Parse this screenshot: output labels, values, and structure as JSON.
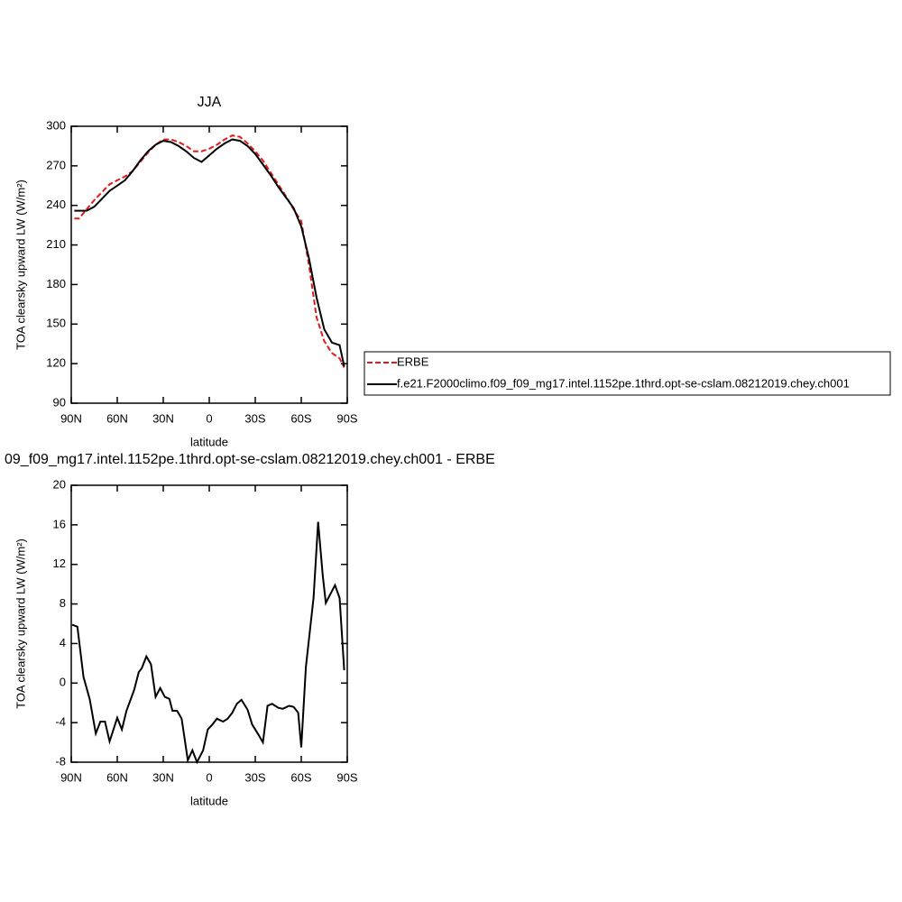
{
  "chart_data": [
    {
      "type": "line",
      "title": "JJA",
      "xlabel": "latitude",
      "ylabel": "TOA clearsky upward LW (W/m²)",
      "x": [
        88,
        85,
        80,
        75,
        70,
        65,
        60,
        55,
        50,
        45,
        40,
        35,
        30,
        25,
        20,
        15,
        10,
        5,
        0,
        -5,
        -10,
        -15,
        -20,
        -25,
        -30,
        -35,
        -40,
        -45,
        -50,
        -55,
        -60,
        -65,
        -70,
        -75,
        -80,
        -85,
        -88
      ],
      "series": [
        {
          "name": "ERBE",
          "color": "#e31a1c",
          "style": "dashed",
          "values": [
            230,
            230,
            237,
            244,
            250,
            256,
            259,
            262,
            266,
            273,
            280,
            286,
            290,
            290,
            288,
            285,
            281,
            281,
            283,
            286,
            290,
            293,
            292,
            287,
            281,
            274,
            265,
            256,
            247,
            237,
            228,
            195,
            155,
            137,
            128,
            124,
            117
          ]
        },
        {
          "name": "f.e21.F2000climo.f09_f09_mg17.intel.1152pe.1thrd.opt-se-cslam.08212019.chey.ch001",
          "color": "#000000",
          "style": "solid",
          "values": [
            236,
            236,
            236,
            239,
            245,
            251,
            255,
            259,
            266,
            274,
            281,
            286,
            289,
            288,
            285,
            281,
            276,
            273,
            278,
            283,
            287,
            290,
            289,
            285,
            279,
            271,
            263,
            254,
            246,
            238,
            224,
            200,
            170,
            146,
            136,
            134,
            118
          ]
        }
      ],
      "legend": "right",
      "xlim": [
        90,
        -90
      ],
      "xticks": [
        {
          "value": 90,
          "label": "90N"
        },
        {
          "value": 60,
          "label": "60N"
        },
        {
          "value": 30,
          "label": "30N"
        },
        0,
        {
          "value": -30,
          "label": "30S"
        },
        {
          "value": -60,
          "label": "60S"
        },
        {
          "value": -90,
          "label": "90S"
        }
      ],
      "ylim": [
        90,
        300
      ],
      "yticks": [
        90,
        120,
        150,
        180,
        210,
        240,
        270,
        300
      ]
    },
    {
      "type": "line",
      "title": "09_f09_mg17.intel.1152pe.1thrd.opt-se-cslam.08212019.chey.ch001 - ERBE",
      "xlabel": "latitude",
      "ylabel": "TOA clearsky upward LW (W/m²)",
      "x": [
        89.4,
        86,
        82,
        78,
        74,
        71,
        68,
        65,
        60,
        57,
        54,
        49,
        46,
        44,
        41,
        38,
        35,
        32,
        29,
        26,
        24,
        21,
        18,
        14,
        11,
        8,
        4,
        1,
        -2,
        -5,
        -9,
        -12,
        -15,
        -18,
        -21,
        -25,
        -28,
        -32,
        -35,
        -38,
        -41,
        -45,
        -48,
        -52,
        -55,
        -58,
        -60,
        -63,
        -66,
        -68,
        -71,
        -74,
        -76,
        -79,
        -82,
        -85,
        -88
      ],
      "series": [
        {
          "color": "#000000",
          "style": "solid",
          "values": [
            5.9,
            5.7,
            0.6,
            -1.6,
            -5.1,
            -3.9,
            -3.9,
            -5.9,
            -3.5,
            -4.7,
            -2.8,
            -0.7,
            1.1,
            1.5,
            2.7,
            1.9,
            -1.4,
            -0.5,
            -1.4,
            -1.6,
            -2.8,
            -2.8,
            -3.6,
            -7.8,
            -6.8,
            -8.0,
            -6.8,
            -4.7,
            -4.2,
            -3.6,
            -3.9,
            -3.6,
            -3.0,
            -2.1,
            -1.7,
            -2.7,
            -4.2,
            -5.2,
            -6.0,
            -2.3,
            -2.1,
            -2.5,
            -2.6,
            -2.3,
            -2.4,
            -3.0,
            -6.5,
            1.6,
            5.8,
            8.6,
            16.3,
            10.9,
            8.1,
            9.0,
            9.9,
            8.6,
            1.3
          ]
        }
      ],
      "xlim": [
        90,
        -90
      ],
      "xticks": [
        {
          "value": 90,
          "label": "90N"
        },
        {
          "value": 60,
          "label": "60N"
        },
        {
          "value": 30,
          "label": "30N"
        },
        0,
        {
          "value": -30,
          "label": "30S"
        },
        {
          "value": -60,
          "label": "60S"
        },
        {
          "value": -90,
          "label": "90S"
        }
      ],
      "ylim": [
        -8,
        20
      ],
      "yticks": [
        -8,
        -4,
        0,
        4,
        8,
        12,
        16,
        20
      ]
    }
  ]
}
